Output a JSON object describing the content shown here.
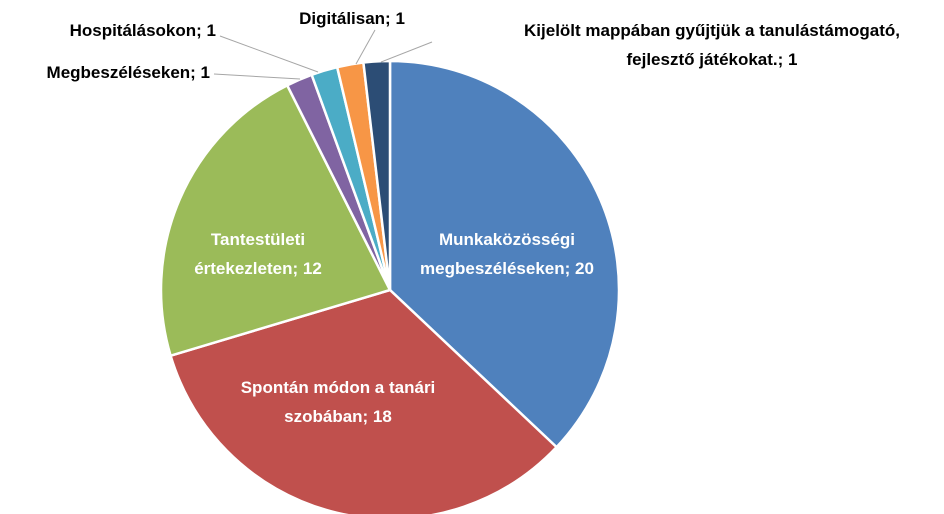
{
  "chart_data": {
    "type": "pie",
    "values": [
      20,
      18,
      12,
      1,
      1,
      1,
      1
    ],
    "value_labels": [
      "Munkaközösségi megbeszéléseken; 20",
      "Spontán módon a tanári szobában; 18",
      "Tantestületi értekezleten; 12",
      "Megbeszéléseken; 1",
      "Hospitálásokon; 1",
      "Digitálisan; 1",
      "Kijelölt mappában gyűjtjük a tanulástámogató, fejlesztő játékokat.; 1"
    ],
    "colors": [
      "#4f81bd",
      "#c0504d",
      "#9bbb59",
      "#8064a2",
      "#4bacc6",
      "#f79646",
      "#2c4d75"
    ]
  }
}
